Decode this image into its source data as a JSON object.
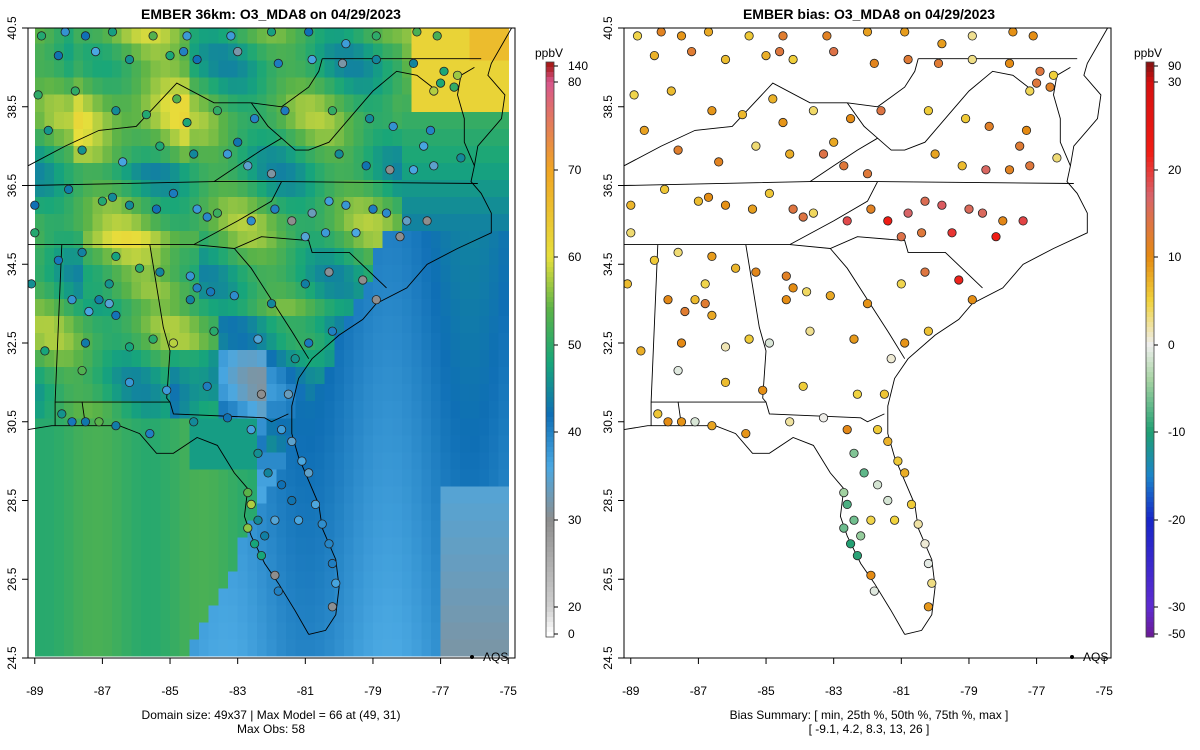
{
  "left_panel": {
    "title": "EMBER 36km: O3_MDA8 on 04/29/2023",
    "legend_label": "AQS",
    "caption_line1": "Domain size: 49x37 | Max Model = 66 at (49, 31)",
    "caption_line2": "Max Obs: 58",
    "colorbar": {
      "unit": "ppbV",
      "min": 0,
      "max": 140,
      "ticks": [
        {
          "value": 140,
          "label": "140"
        },
        {
          "value": 80,
          "label": "80"
        },
        {
          "value": 70,
          "label": "70"
        },
        {
          "value": 60,
          "label": "60"
        },
        {
          "value": 50,
          "label": "50"
        },
        {
          "value": 40,
          "label": "40"
        },
        {
          "value": 30,
          "label": "30"
        },
        {
          "value": 20,
          "label": "20"
        },
        {
          "value": 0,
          "label": "0"
        }
      ]
    }
  },
  "right_panel": {
    "title": "EMBER bias: O3_MDA8 on 04/29/2023",
    "legend_label": "AQS",
    "caption_line1": "Bias Summary: [ min, 25th %, 50th %, 75th %, max ]",
    "caption_line2": "[ -9.1,   4.2,   8.3,   13,   26 ]",
    "colorbar": {
      "unit": "ppbV",
      "min": -50,
      "max": 90,
      "ticks": [
        {
          "value": 90,
          "label": "90"
        },
        {
          "value": 30,
          "label": "30"
        },
        {
          "value": 20,
          "label": "20"
        },
        {
          "value": 10,
          "label": "10"
        },
        {
          "value": 0,
          "label": "0"
        },
        {
          "value": -10,
          "label": "-10"
        },
        {
          "value": -20,
          "label": "-20"
        },
        {
          "value": -30,
          "label": "-30"
        },
        {
          "value": -50,
          "label": "-50"
        }
      ]
    }
  },
  "axes": {
    "x_ticks": [
      "-89",
      "-87",
      "-85",
      "-83",
      "-81",
      "-79",
      "-77",
      "-75"
    ],
    "y_ticks": [
      "40.5",
      "38.5",
      "36.5",
      "34.5",
      "32.5",
      "30.5",
      "28.5",
      "26.5",
      "24.5"
    ],
    "lon_range": [
      -89.2,
      -74.8
    ],
    "lat_range": [
      24.5,
      40.5
    ]
  },
  "colors": {
    "concentration_scale": [
      "#ffffff",
      "#c8c8c8",
      "#8c8c8c",
      "#41a4e0",
      "#0f6fb5",
      "#17a67a",
      "#58b348",
      "#e7df3c",
      "#f2a823",
      "#d7568c",
      "#a81b1b"
    ],
    "bias_scale": [
      "#6a1b9a",
      "#1726c8",
      "#1b84c9",
      "#1f9e72",
      "#a6d3a2",
      "#eeeeee",
      "#f0d23c",
      "#e48a12",
      "#d33d55",
      "#f01c14",
      "#8b1212"
    ]
  }
}
